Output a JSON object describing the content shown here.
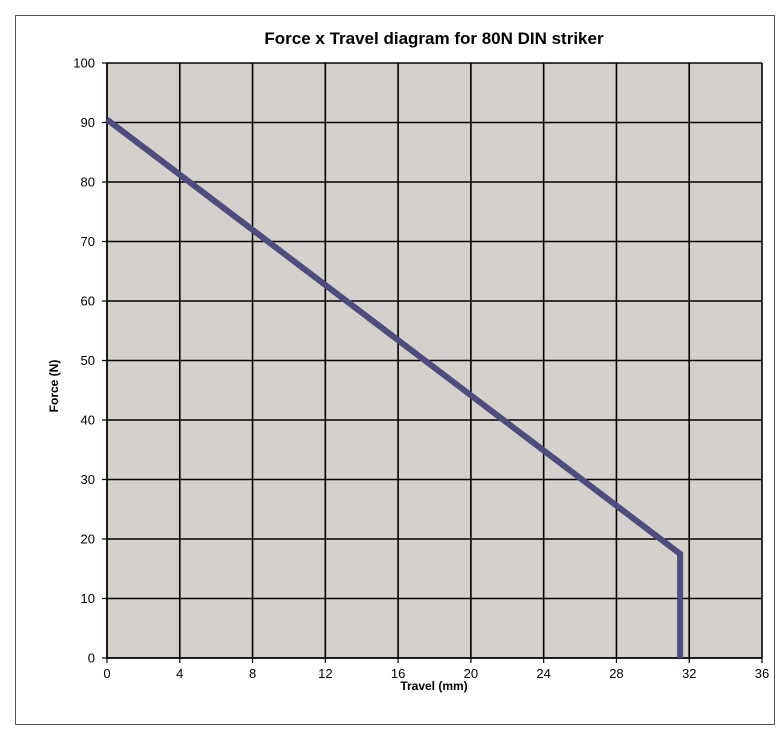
{
  "chart_data": {
    "type": "line",
    "title": "Force x Travel diagram for 80N DIN striker",
    "xlabel": "Travel (mm)",
    "ylabel": "Force (N)",
    "xlim": [
      0,
      36
    ],
    "ylim": [
      0,
      100
    ],
    "x_ticks": [
      "0",
      "4",
      "8",
      "12",
      "16",
      "20",
      "24",
      "28",
      "32",
      "36"
    ],
    "y_ticks": [
      "0",
      "10",
      "20",
      "30",
      "40",
      "50",
      "60",
      "70",
      "80",
      "90",
      "100"
    ],
    "grid": true,
    "plot_background": "#d4d0cc",
    "series": [
      {
        "color": "#4d4c7d",
        "points": [
          {
            "x": 0,
            "y": 90.5
          },
          {
            "x": 31.5,
            "y": 17.5
          },
          {
            "x": 31.5,
            "y": 0
          }
        ]
      }
    ]
  }
}
